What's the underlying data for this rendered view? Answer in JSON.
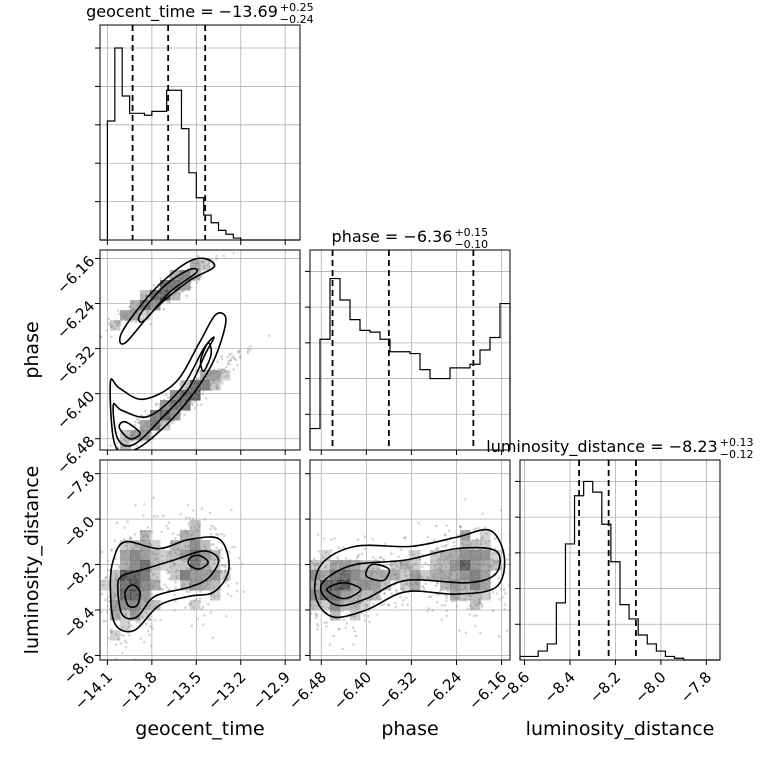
{
  "chart_data": {
    "type": "corner",
    "parameters": [
      {
        "key": "geocent_time",
        "label": "geocent_time",
        "title": "geocent_time = −13.69",
        "title_sup": "+0.25",
        "title_sub": "−0.24",
        "range": [
          -14.15,
          -12.8
        ],
        "ticks": [
          -14.1,
          -13.8,
          -13.5,
          -13.2,
          -12.9
        ],
        "tick_labels": [
          "−14.1",
          "−13.8",
          "−13.5",
          "−13.2",
          "−12.9"
        ],
        "quantiles": [
          -13.93,
          -13.69,
          -13.44
        ],
        "hist": {
          "edges_start": -14.15,
          "bin_width": 0.05,
          "counts": [
            0,
            0.62,
            1.0,
            0.75,
            0.66,
            0.66,
            0.65,
            0.67,
            0.67,
            0.78,
            0.78,
            0.58,
            0.35,
            0.22,
            0.13,
            0.09,
            0.05,
            0.03,
            0.01,
            0,
            0,
            0,
            0,
            0,
            0,
            0,
            0
          ]
        }
      },
      {
        "key": "phase",
        "label": "phase",
        "title": "phase = −6.36",
        "title_sup": "+0.15",
        "title_sub": "−0.10",
        "range": [
          -6.5,
          -6.145
        ],
        "ticks": [
          -6.48,
          -6.4,
          -6.32,
          -6.24,
          -6.16
        ],
        "tick_labels": [
          "−6.48",
          "−6.40",
          "−6.32",
          "−6.24",
          "−6.16"
        ],
        "quantiles": [
          -6.46,
          -6.36,
          -6.21
        ],
        "hist": {
          "edges_start": -6.5,
          "bin_width": 0.01775,
          "counts": [
            0.12,
            0.62,
            0.96,
            0.84,
            0.73,
            0.67,
            0.66,
            0.62,
            0.55,
            0.55,
            0.54,
            0.45,
            0.4,
            0.4,
            0.46,
            0.46,
            0.48,
            0.56,
            0.63,
            0.82,
            0.11
          ]
        }
      },
      {
        "key": "luminosity_distance",
        "label": "luminosity_distance",
        "title": "luminosity_distance = −8.23",
        "title_sup": "+0.13",
        "title_sub": "−0.12",
        "range": [
          -8.62,
          -7.74
        ],
        "ticks": [
          -8.6,
          -8.4,
          -8.2,
          -8.0,
          -7.8
        ],
        "tick_labels": [
          "−8.6",
          "−8.4",
          "−8.2",
          "−8.0",
          "−7.8"
        ],
        "quantiles": [
          -8.36,
          -8.23,
          -8.11
        ],
        "hist": {
          "edges_start": -8.62,
          "bin_width": 0.04,
          "counts": [
            0.02,
            0.02,
            0.05,
            0.09,
            0.32,
            0.65,
            0.92,
            1.0,
            0.94,
            0.76,
            0.55,
            0.31,
            0.23,
            0.14,
            0.09,
            0.05,
            0.02,
            0.01,
            0,
            0,
            0,
            0
          ]
        }
      }
    ],
    "hist_ylim": [
      0,
      1.12
    ],
    "pairs": [
      {
        "x": "geocent_time",
        "y": "phase",
        "clusters": [
          {
            "cx": -13.72,
            "cy": -6.22,
            "sx": 0.17,
            "sy": 0.03,
            "rho": 0.93,
            "n": 700
          },
          {
            "cx": -13.64,
            "cy": -6.42,
            "sx": 0.22,
            "sy": 0.045,
            "rho": 0.96,
            "n": 1000
          }
        ],
        "contours": [
          [
            [
              -14.0,
              -6.29
            ],
            [
              -13.8,
              -6.22
            ],
            [
              -13.58,
              -6.17
            ],
            [
              -13.45,
              -6.16
            ],
            [
              -13.38,
              -6.175
            ],
            [
              -13.55,
              -6.2
            ],
            [
              -13.78,
              -6.25
            ],
            [
              -13.98,
              -6.31
            ]
          ],
          [
            [
              -13.88,
              -6.26
            ],
            [
              -13.72,
              -6.21
            ],
            [
              -13.55,
              -6.18
            ],
            [
              -13.5,
              -6.185
            ],
            [
              -13.68,
              -6.22
            ],
            [
              -13.85,
              -6.27
            ]
          ],
          [
            [
              -14.08,
              -6.38
            ],
            [
              -14.05,
              -6.49
            ],
            [
              -13.92,
              -6.5
            ],
            [
              -13.72,
              -6.46
            ],
            [
              -13.52,
              -6.4
            ],
            [
              -13.38,
              -6.34
            ],
            [
              -13.3,
              -6.27
            ],
            [
              -13.37,
              -6.26
            ],
            [
              -13.48,
              -6.31
            ],
            [
              -13.64,
              -6.38
            ],
            [
              -13.86,
              -6.41
            ],
            [
              -14.02,
              -6.39
            ]
          ],
          [
            [
              -14.06,
              -6.42
            ],
            [
              -14.03,
              -6.48
            ],
            [
              -13.92,
              -6.49
            ],
            [
              -13.72,
              -6.44
            ],
            [
              -13.55,
              -6.39
            ],
            [
              -13.44,
              -6.33
            ],
            [
              -13.38,
              -6.3
            ],
            [
              -13.45,
              -6.32
            ],
            [
              -13.6,
              -6.39
            ],
            [
              -13.82,
              -6.44
            ],
            [
              -14.0,
              -6.43
            ]
          ],
          [
            [
              -14.02,
              -6.46
            ],
            [
              -13.95,
              -6.48
            ],
            [
              -13.88,
              -6.47
            ],
            [
              -13.98,
              -6.45
            ]
          ],
          [
            [
              -13.47,
              -6.34
            ],
            [
              -13.42,
              -6.31
            ],
            [
              -13.4,
              -6.33
            ],
            [
              -13.45,
              -6.36
            ]
          ]
        ]
      },
      {
        "x": "geocent_time",
        "y": "luminosity_distance",
        "clusters": [
          {
            "cx": -13.92,
            "cy": -8.28,
            "sx": 0.1,
            "sy": 0.12,
            "rho": 0.2,
            "n": 800
          },
          {
            "cx": -13.5,
            "cy": -8.2,
            "sx": 0.13,
            "sy": 0.1,
            "rho": -0.2,
            "n": 600
          }
        ],
        "contours": [
          [
            [
              -14.08,
              -8.3
            ],
            [
              -14.05,
              -8.46
            ],
            [
              -13.92,
              -8.49
            ],
            [
              -13.75,
              -8.38
            ],
            [
              -13.55,
              -8.34
            ],
            [
              -13.38,
              -8.32
            ],
            [
              -13.28,
              -8.22
            ],
            [
              -13.34,
              -8.09
            ],
            [
              -13.55,
              -8.09
            ],
            [
              -13.75,
              -8.13
            ],
            [
              -13.98,
              -8.1
            ],
            [
              -14.06,
              -8.18
            ]
          ],
          [
            [
              -14.03,
              -8.3
            ],
            [
              -14.0,
              -8.42
            ],
            [
              -13.9,
              -8.43
            ],
            [
              -13.78,
              -8.34
            ],
            [
              -13.55,
              -8.3
            ],
            [
              -13.42,
              -8.26
            ],
            [
              -13.35,
              -8.18
            ],
            [
              -13.45,
              -8.14
            ],
            [
              -13.65,
              -8.18
            ],
            [
              -13.85,
              -8.22
            ],
            [
              -14.0,
              -8.25
            ]
          ],
          [
            [
              -13.98,
              -8.32
            ],
            [
              -13.96,
              -8.38
            ],
            [
              -13.9,
              -8.38
            ],
            [
              -13.88,
              -8.32
            ],
            [
              -13.93,
              -8.29
            ]
          ],
          [
            [
              -13.55,
              -8.2
            ],
            [
              -13.48,
              -8.22
            ],
            [
              -13.42,
              -8.19
            ],
            [
              -13.48,
              -8.16
            ],
            [
              -13.54,
              -8.17
            ]
          ]
        ]
      },
      {
        "x": "phase",
        "y": "luminosity_distance",
        "clusters": [
          {
            "cx": -6.45,
            "cy": -8.3,
            "sx": 0.04,
            "sy": 0.08,
            "rho": 0.1,
            "n": 900
          },
          {
            "cx": -6.22,
            "cy": -8.22,
            "sx": 0.035,
            "sy": 0.1,
            "rho": 0.0,
            "n": 800
          },
          {
            "cx": -6.33,
            "cy": -8.24,
            "sx": 0.04,
            "sy": 0.07,
            "rho": 0.0,
            "n": 300
          }
        ],
        "contours": [
          [
            [
              -6.49,
              -8.34
            ],
            [
              -6.46,
              -8.43
            ],
            [
              -6.4,
              -8.4
            ],
            [
              -6.33,
              -8.32
            ],
            [
              -6.24,
              -8.33
            ],
            [
              -6.17,
              -8.3
            ],
            [
              -6.155,
              -8.17
            ],
            [
              -6.18,
              -8.05
            ],
            [
              -6.24,
              -8.08
            ],
            [
              -6.32,
              -8.12
            ],
            [
              -6.42,
              -8.12
            ],
            [
              -6.48,
              -8.2
            ]
          ],
          [
            [
              -6.48,
              -8.32
            ],
            [
              -6.45,
              -8.38
            ],
            [
              -6.4,
              -8.35
            ],
            [
              -6.33,
              -8.27
            ],
            [
              -6.22,
              -8.28
            ],
            [
              -6.17,
              -8.24
            ],
            [
              -6.17,
              -8.14
            ],
            [
              -6.24,
              -8.13
            ],
            [
              -6.33,
              -8.18
            ],
            [
              -6.42,
              -8.2
            ],
            [
              -6.47,
              -8.26
            ]
          ],
          [
            [
              -6.47,
              -8.31
            ],
            [
              -6.44,
              -8.35
            ],
            [
              -6.41,
              -8.31
            ],
            [
              -6.44,
              -8.28
            ]
          ],
          [
            [
              -6.4,
              -8.25
            ],
            [
              -6.37,
              -8.27
            ],
            [
              -6.36,
              -8.22
            ],
            [
              -6.39,
              -8.2
            ]
          ]
        ]
      }
    ]
  }
}
